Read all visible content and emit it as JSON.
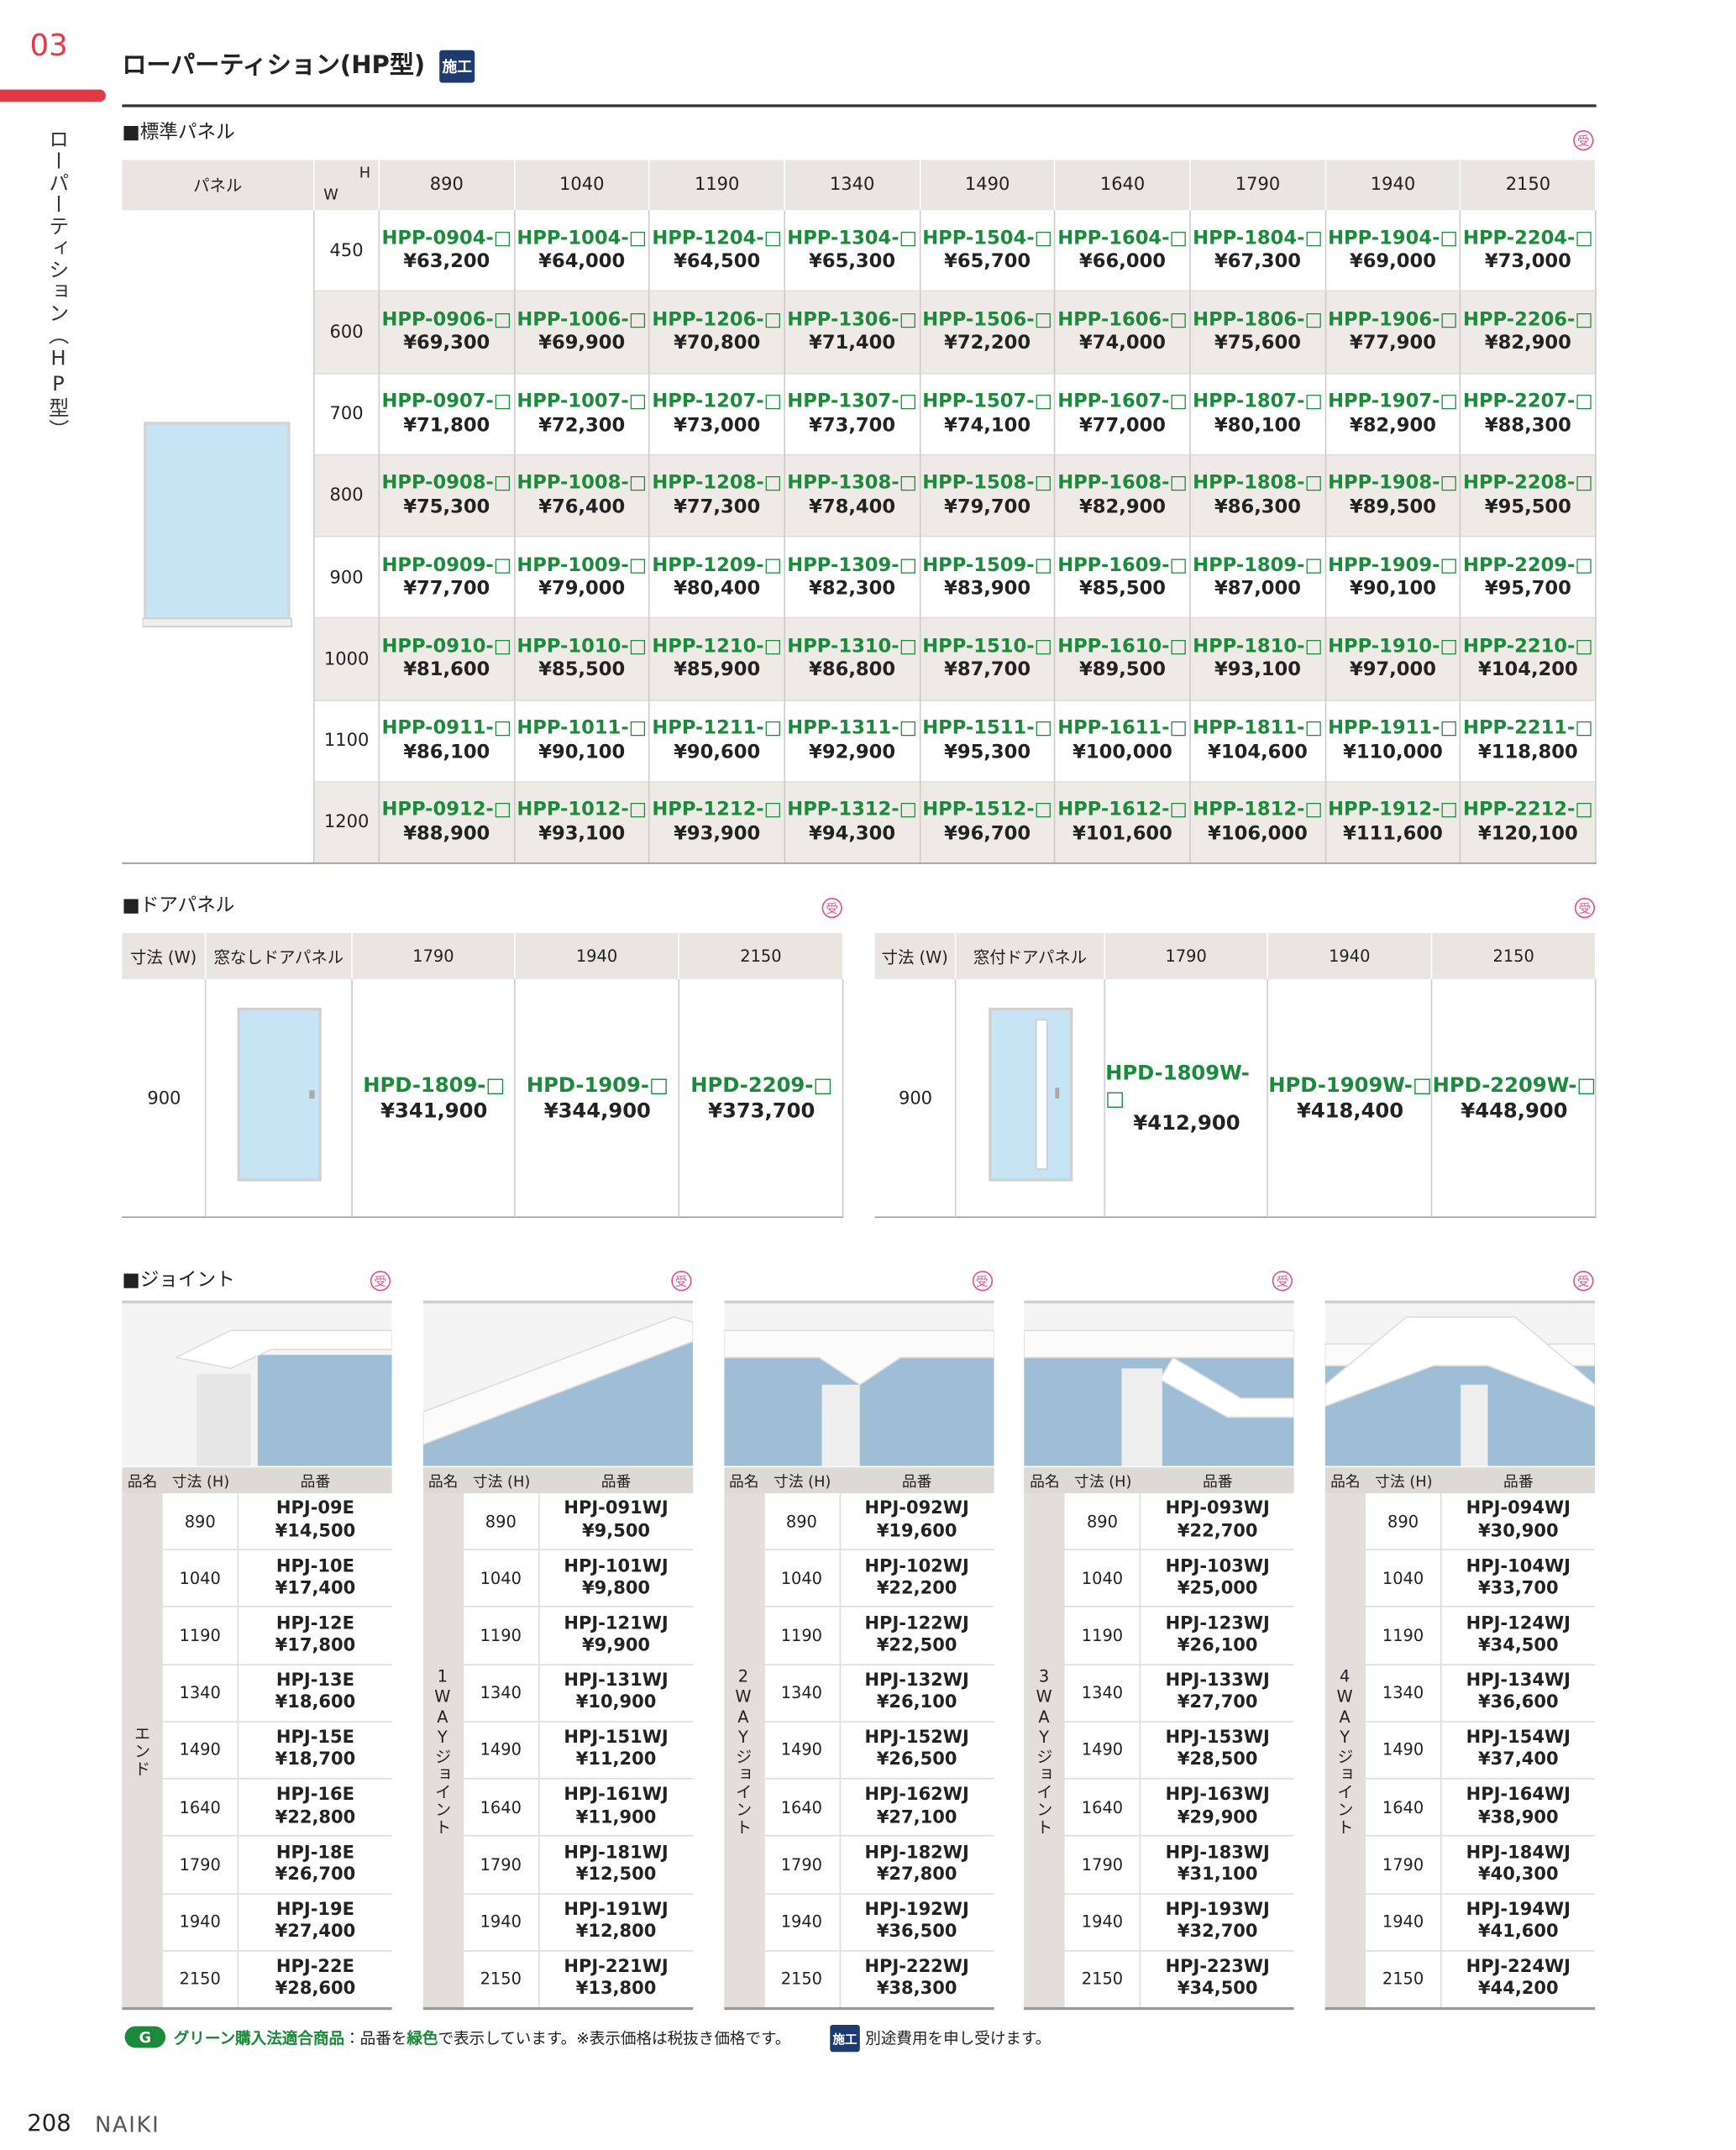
{
  "header": {
    "section_number": "03",
    "title": "ローパーティション(HP型)",
    "badge": "施工",
    "side_label": "ローパーティション（HP型）"
  },
  "standard": {
    "heading": "■標準パネル",
    "mark": "受",
    "panel_label": "パネル",
    "corner_h": "H",
    "corner_w": "W",
    "widths": [
      "890",
      "1040",
      "1190",
      "1340",
      "1490",
      "1640",
      "1790",
      "1940",
      "2150"
    ],
    "rows": [
      {
        "height": "450",
        "cells": [
          [
            "HPP-0904-□",
            "¥63,200"
          ],
          [
            "HPP-1004-□",
            "¥64,000"
          ],
          [
            "HPP-1204-□",
            "¥64,500"
          ],
          [
            "HPP-1304-□",
            "¥65,300"
          ],
          [
            "HPP-1504-□",
            "¥65,700"
          ],
          [
            "HPP-1604-□",
            "¥66,000"
          ],
          [
            "HPP-1804-□",
            "¥67,300"
          ],
          [
            "HPP-1904-□",
            "¥69,000"
          ],
          [
            "HPP-2204-□",
            "¥73,000"
          ]
        ]
      },
      {
        "height": "600",
        "cells": [
          [
            "HPP-0906-□",
            "¥69,300"
          ],
          [
            "HPP-1006-□",
            "¥69,900"
          ],
          [
            "HPP-1206-□",
            "¥70,800"
          ],
          [
            "HPP-1306-□",
            "¥71,400"
          ],
          [
            "HPP-1506-□",
            "¥72,200"
          ],
          [
            "HPP-1606-□",
            "¥74,000"
          ],
          [
            "HPP-1806-□",
            "¥75,600"
          ],
          [
            "HPP-1906-□",
            "¥77,900"
          ],
          [
            "HPP-2206-□",
            "¥82,900"
          ]
        ]
      },
      {
        "height": "700",
        "cells": [
          [
            "HPP-0907-□",
            "¥71,800"
          ],
          [
            "HPP-1007-□",
            "¥72,300"
          ],
          [
            "HPP-1207-□",
            "¥73,000"
          ],
          [
            "HPP-1307-□",
            "¥73,700"
          ],
          [
            "HPP-1507-□",
            "¥74,100"
          ],
          [
            "HPP-1607-□",
            "¥77,000"
          ],
          [
            "HPP-1807-□",
            "¥80,100"
          ],
          [
            "HPP-1907-□",
            "¥82,900"
          ],
          [
            "HPP-2207-□",
            "¥88,300"
          ]
        ]
      },
      {
        "height": "800",
        "cells": [
          [
            "HPP-0908-□",
            "¥75,300"
          ],
          [
            "HPP-1008-□",
            "¥76,400"
          ],
          [
            "HPP-1208-□",
            "¥77,300"
          ],
          [
            "HPP-1308-□",
            "¥78,400"
          ],
          [
            "HPP-1508-□",
            "¥79,700"
          ],
          [
            "HPP-1608-□",
            "¥82,900"
          ],
          [
            "HPP-1808-□",
            "¥86,300"
          ],
          [
            "HPP-1908-□",
            "¥89,500"
          ],
          [
            "HPP-2208-□",
            "¥95,500"
          ]
        ]
      },
      {
        "height": "900",
        "cells": [
          [
            "HPP-0909-□",
            "¥77,700"
          ],
          [
            "HPP-1009-□",
            "¥79,000"
          ],
          [
            "HPP-1209-□",
            "¥80,400"
          ],
          [
            "HPP-1309-□",
            "¥82,300"
          ],
          [
            "HPP-1509-□",
            "¥83,900"
          ],
          [
            "HPP-1609-□",
            "¥85,500"
          ],
          [
            "HPP-1809-□",
            "¥87,000"
          ],
          [
            "HPP-1909-□",
            "¥90,100"
          ],
          [
            "HPP-2209-□",
            "¥95,700"
          ]
        ]
      },
      {
        "height": "1000",
        "cells": [
          [
            "HPP-0910-□",
            "¥81,600"
          ],
          [
            "HPP-1010-□",
            "¥85,500"
          ],
          [
            "HPP-1210-□",
            "¥85,900"
          ],
          [
            "HPP-1310-□",
            "¥86,800"
          ],
          [
            "HPP-1510-□",
            "¥87,700"
          ],
          [
            "HPP-1610-□",
            "¥89,500"
          ],
          [
            "HPP-1810-□",
            "¥93,100"
          ],
          [
            "HPP-1910-□",
            "¥97,000"
          ],
          [
            "HPP-2210-□",
            "¥104,200"
          ]
        ]
      },
      {
        "height": "1100",
        "cells": [
          [
            "HPP-0911-□",
            "¥86,100"
          ],
          [
            "HPP-1011-□",
            "¥90,100"
          ],
          [
            "HPP-1211-□",
            "¥90,600"
          ],
          [
            "HPP-1311-□",
            "¥92,900"
          ],
          [
            "HPP-1511-□",
            "¥95,300"
          ],
          [
            "HPP-1611-□",
            "¥100,000"
          ],
          [
            "HPP-1811-□",
            "¥104,600"
          ],
          [
            "HPP-1911-□",
            "¥110,000"
          ],
          [
            "HPP-2211-□",
            "¥118,800"
          ]
        ]
      },
      {
        "height": "1200",
        "cells": [
          [
            "HPP-0912-□",
            "¥88,900"
          ],
          [
            "HPP-1012-□",
            "¥93,100"
          ],
          [
            "HPP-1212-□",
            "¥93,900"
          ],
          [
            "HPP-1312-□",
            "¥94,300"
          ],
          [
            "HPP-1512-□",
            "¥96,700"
          ],
          [
            "HPP-1612-□",
            "¥101,600"
          ],
          [
            "HPP-1812-□",
            "¥106,000"
          ],
          [
            "HPP-1912-□",
            "¥111,600"
          ],
          [
            "HPP-2212-□",
            "¥120,100"
          ]
        ]
      }
    ]
  },
  "door": {
    "heading": "■ドアパネル",
    "tables": [
      {
        "mark": "受",
        "headers": [
          "寸法 (W)",
          "窓なしドアパネル",
          "1790",
          "1940",
          "2150"
        ],
        "size": "900",
        "items": [
          [
            "HPD-1809-□",
            "¥341,900"
          ],
          [
            "HPD-1909-□",
            "¥344,900"
          ],
          [
            "HPD-2209-□",
            "¥373,700"
          ]
        ]
      },
      {
        "mark": "受",
        "headers": [
          "寸法 (W)",
          "窓付ドアパネル",
          "1790",
          "1940",
          "2150"
        ],
        "size": "900",
        "items": [
          [
            "HPD-1809W-□",
            "¥412,900"
          ],
          [
            "HPD-1909W-□",
            "¥418,400"
          ],
          [
            "HPD-2209W-□",
            "¥448,900"
          ]
        ]
      }
    ]
  },
  "joints": {
    "heading": "■ジョイント",
    "headers": [
      "品名",
      "寸法 (H)",
      "品番"
    ],
    "tables": [
      {
        "mark": "受",
        "name": "エンド",
        "rows": [
          [
            "890",
            "HPJ-09E",
            "¥14,500"
          ],
          [
            "1040",
            "HPJ-10E",
            "¥17,400"
          ],
          [
            "1190",
            "HPJ-12E",
            "¥17,800"
          ],
          [
            "1340",
            "HPJ-13E",
            "¥18,600"
          ],
          [
            "1490",
            "HPJ-15E",
            "¥18,700"
          ],
          [
            "1640",
            "HPJ-16E",
            "¥22,800"
          ],
          [
            "1790",
            "HPJ-18E",
            "¥26,700"
          ],
          [
            "1940",
            "HPJ-19E",
            "¥27,400"
          ],
          [
            "2150",
            "HPJ-22E",
            "¥28,600"
          ]
        ]
      },
      {
        "mark": "受",
        "name": "1WAYジョイント",
        "rows": [
          [
            "890",
            "HPJ-091WJ",
            "¥9,500"
          ],
          [
            "1040",
            "HPJ-101WJ",
            "¥9,800"
          ],
          [
            "1190",
            "HPJ-121WJ",
            "¥9,900"
          ],
          [
            "1340",
            "HPJ-131WJ",
            "¥10,900"
          ],
          [
            "1490",
            "HPJ-151WJ",
            "¥11,200"
          ],
          [
            "1640",
            "HPJ-161WJ",
            "¥11,900"
          ],
          [
            "1790",
            "HPJ-181WJ",
            "¥12,500"
          ],
          [
            "1940",
            "HPJ-191WJ",
            "¥12,800"
          ],
          [
            "2150",
            "HPJ-221WJ",
            "¥13,800"
          ]
        ]
      },
      {
        "mark": "受",
        "name": "2WAYジョイント",
        "rows": [
          [
            "890",
            "HPJ-092WJ",
            "¥19,600"
          ],
          [
            "1040",
            "HPJ-102WJ",
            "¥22,200"
          ],
          [
            "1190",
            "HPJ-122WJ",
            "¥22,500"
          ],
          [
            "1340",
            "HPJ-132WJ",
            "¥26,100"
          ],
          [
            "1490",
            "HPJ-152WJ",
            "¥26,500"
          ],
          [
            "1640",
            "HPJ-162WJ",
            "¥27,100"
          ],
          [
            "1790",
            "HPJ-182WJ",
            "¥27,800"
          ],
          [
            "1940",
            "HPJ-192WJ",
            "¥36,500"
          ],
          [
            "2150",
            "HPJ-222WJ",
            "¥38,300"
          ]
        ]
      },
      {
        "mark": "受",
        "name": "3WAYジョイント",
        "rows": [
          [
            "890",
            "HPJ-093WJ",
            "¥22,700"
          ],
          [
            "1040",
            "HPJ-103WJ",
            "¥25,000"
          ],
          [
            "1190",
            "HPJ-123WJ",
            "¥26,100"
          ],
          [
            "1340",
            "HPJ-133WJ",
            "¥27,700"
          ],
          [
            "1490",
            "HPJ-153WJ",
            "¥28,500"
          ],
          [
            "1640",
            "HPJ-163WJ",
            "¥29,900"
          ],
          [
            "1790",
            "HPJ-183WJ",
            "¥31,100"
          ],
          [
            "1940",
            "HPJ-193WJ",
            "¥32,700"
          ],
          [
            "2150",
            "HPJ-223WJ",
            "¥34,500"
          ]
        ]
      },
      {
        "mark": "受",
        "name": "4WAYジョイント",
        "rows": [
          [
            "890",
            "HPJ-094WJ",
            "¥30,900"
          ],
          [
            "1040",
            "HPJ-104WJ",
            "¥33,700"
          ],
          [
            "1190",
            "HPJ-124WJ",
            "¥34,500"
          ],
          [
            "1340",
            "HPJ-134WJ",
            "¥36,600"
          ],
          [
            "1490",
            "HPJ-154WJ",
            "¥37,400"
          ],
          [
            "1640",
            "HPJ-164WJ",
            "¥38,900"
          ],
          [
            "1790",
            "HPJ-184WJ",
            "¥40,300"
          ],
          [
            "1940",
            "HPJ-194WJ",
            "¥41,600"
          ],
          [
            "2150",
            "HPJ-224WJ",
            "¥44,200"
          ]
        ]
      }
    ]
  },
  "footer": {
    "logo": "G",
    "green_label": "グリーン購入法適合商品",
    "text1": "：品番を",
    "text2": "緑色",
    "text3": "で表示しています。※表示価格は税抜き価格です。",
    "badge": "施工",
    "text4": "別途費用を申し受けます。",
    "page": "208",
    "brand": "NAIKI"
  }
}
